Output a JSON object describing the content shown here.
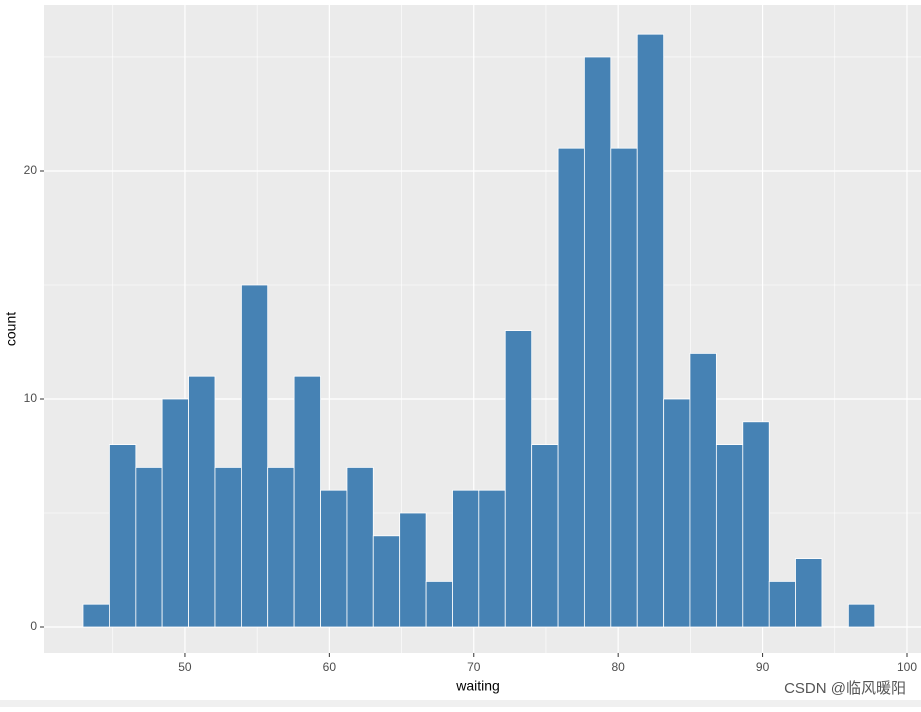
{
  "chart_data": {
    "type": "histogram",
    "x_label": "waiting",
    "y_label": "count",
    "bins": [
      42.94,
      44.77,
      46.6,
      48.42,
      50.25,
      52.08,
      53.91,
      55.73,
      57.56,
      59.39,
      61.22,
      63.04,
      64.87,
      66.7,
      68.53,
      70.35,
      72.18,
      74.01,
      75.84,
      77.66,
      79.49,
      81.32,
      83.15,
      84.97,
      86.8,
      88.63,
      90.46,
      92.28,
      94.11,
      95.94,
      97.77
    ],
    "values": [
      1,
      8,
      7,
      10,
      11,
      7,
      15,
      7,
      11,
      6,
      7,
      4,
      5,
      2,
      6,
      6,
      13,
      8,
      21,
      25,
      21,
      26,
      10,
      12,
      8,
      9,
      2,
      3,
      0,
      1
    ],
    "color": "#4682b4",
    "edge_color": "#ffffff",
    "xlim": [
      40.24,
      100.97
    ],
    "xticks": [
      50,
      60,
      70,
      80,
      90,
      100
    ],
    "xminor": [
      45,
      55,
      65,
      75,
      85,
      95
    ],
    "ylim": [
      -1.14,
      27.28
    ],
    "yticks": [
      0,
      10,
      20
    ],
    "yminor": [
      5,
      15,
      25
    ],
    "grid": true,
    "watermark": "CSDN @临风暖阳"
  }
}
